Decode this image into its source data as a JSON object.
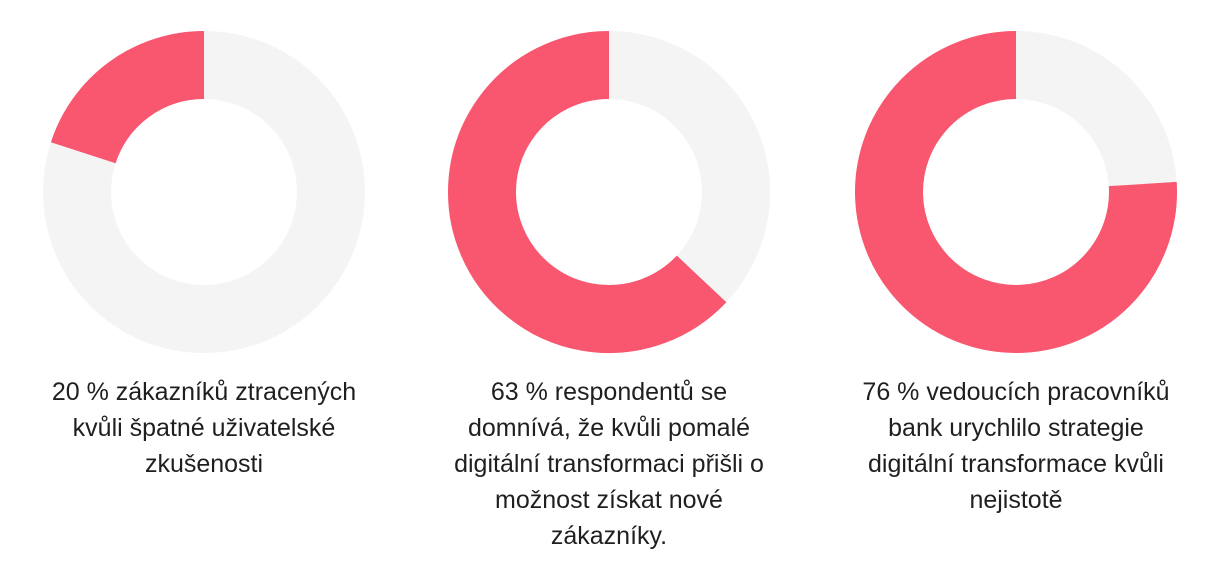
{
  "chart_data": [
    {
      "type": "pie",
      "percent": 20,
      "caption": "20 % zákazníků ztracených kvůli špatné uživatelské zkušenosti"
    },
    {
      "type": "pie",
      "percent": 63,
      "caption": "63 % respondentů se domnívá, že kvůli pomalé digitální transformaci přišli o možnost získat nové zákazníky."
    },
    {
      "type": "pie",
      "percent": 76,
      "caption": "76 % vedoucích pracovníků bank urychlilo strategie digitální transformace kvůli nejistotě"
    }
  ],
  "colors": {
    "accent": "#f9566f",
    "track": "#f4f4f4"
  }
}
